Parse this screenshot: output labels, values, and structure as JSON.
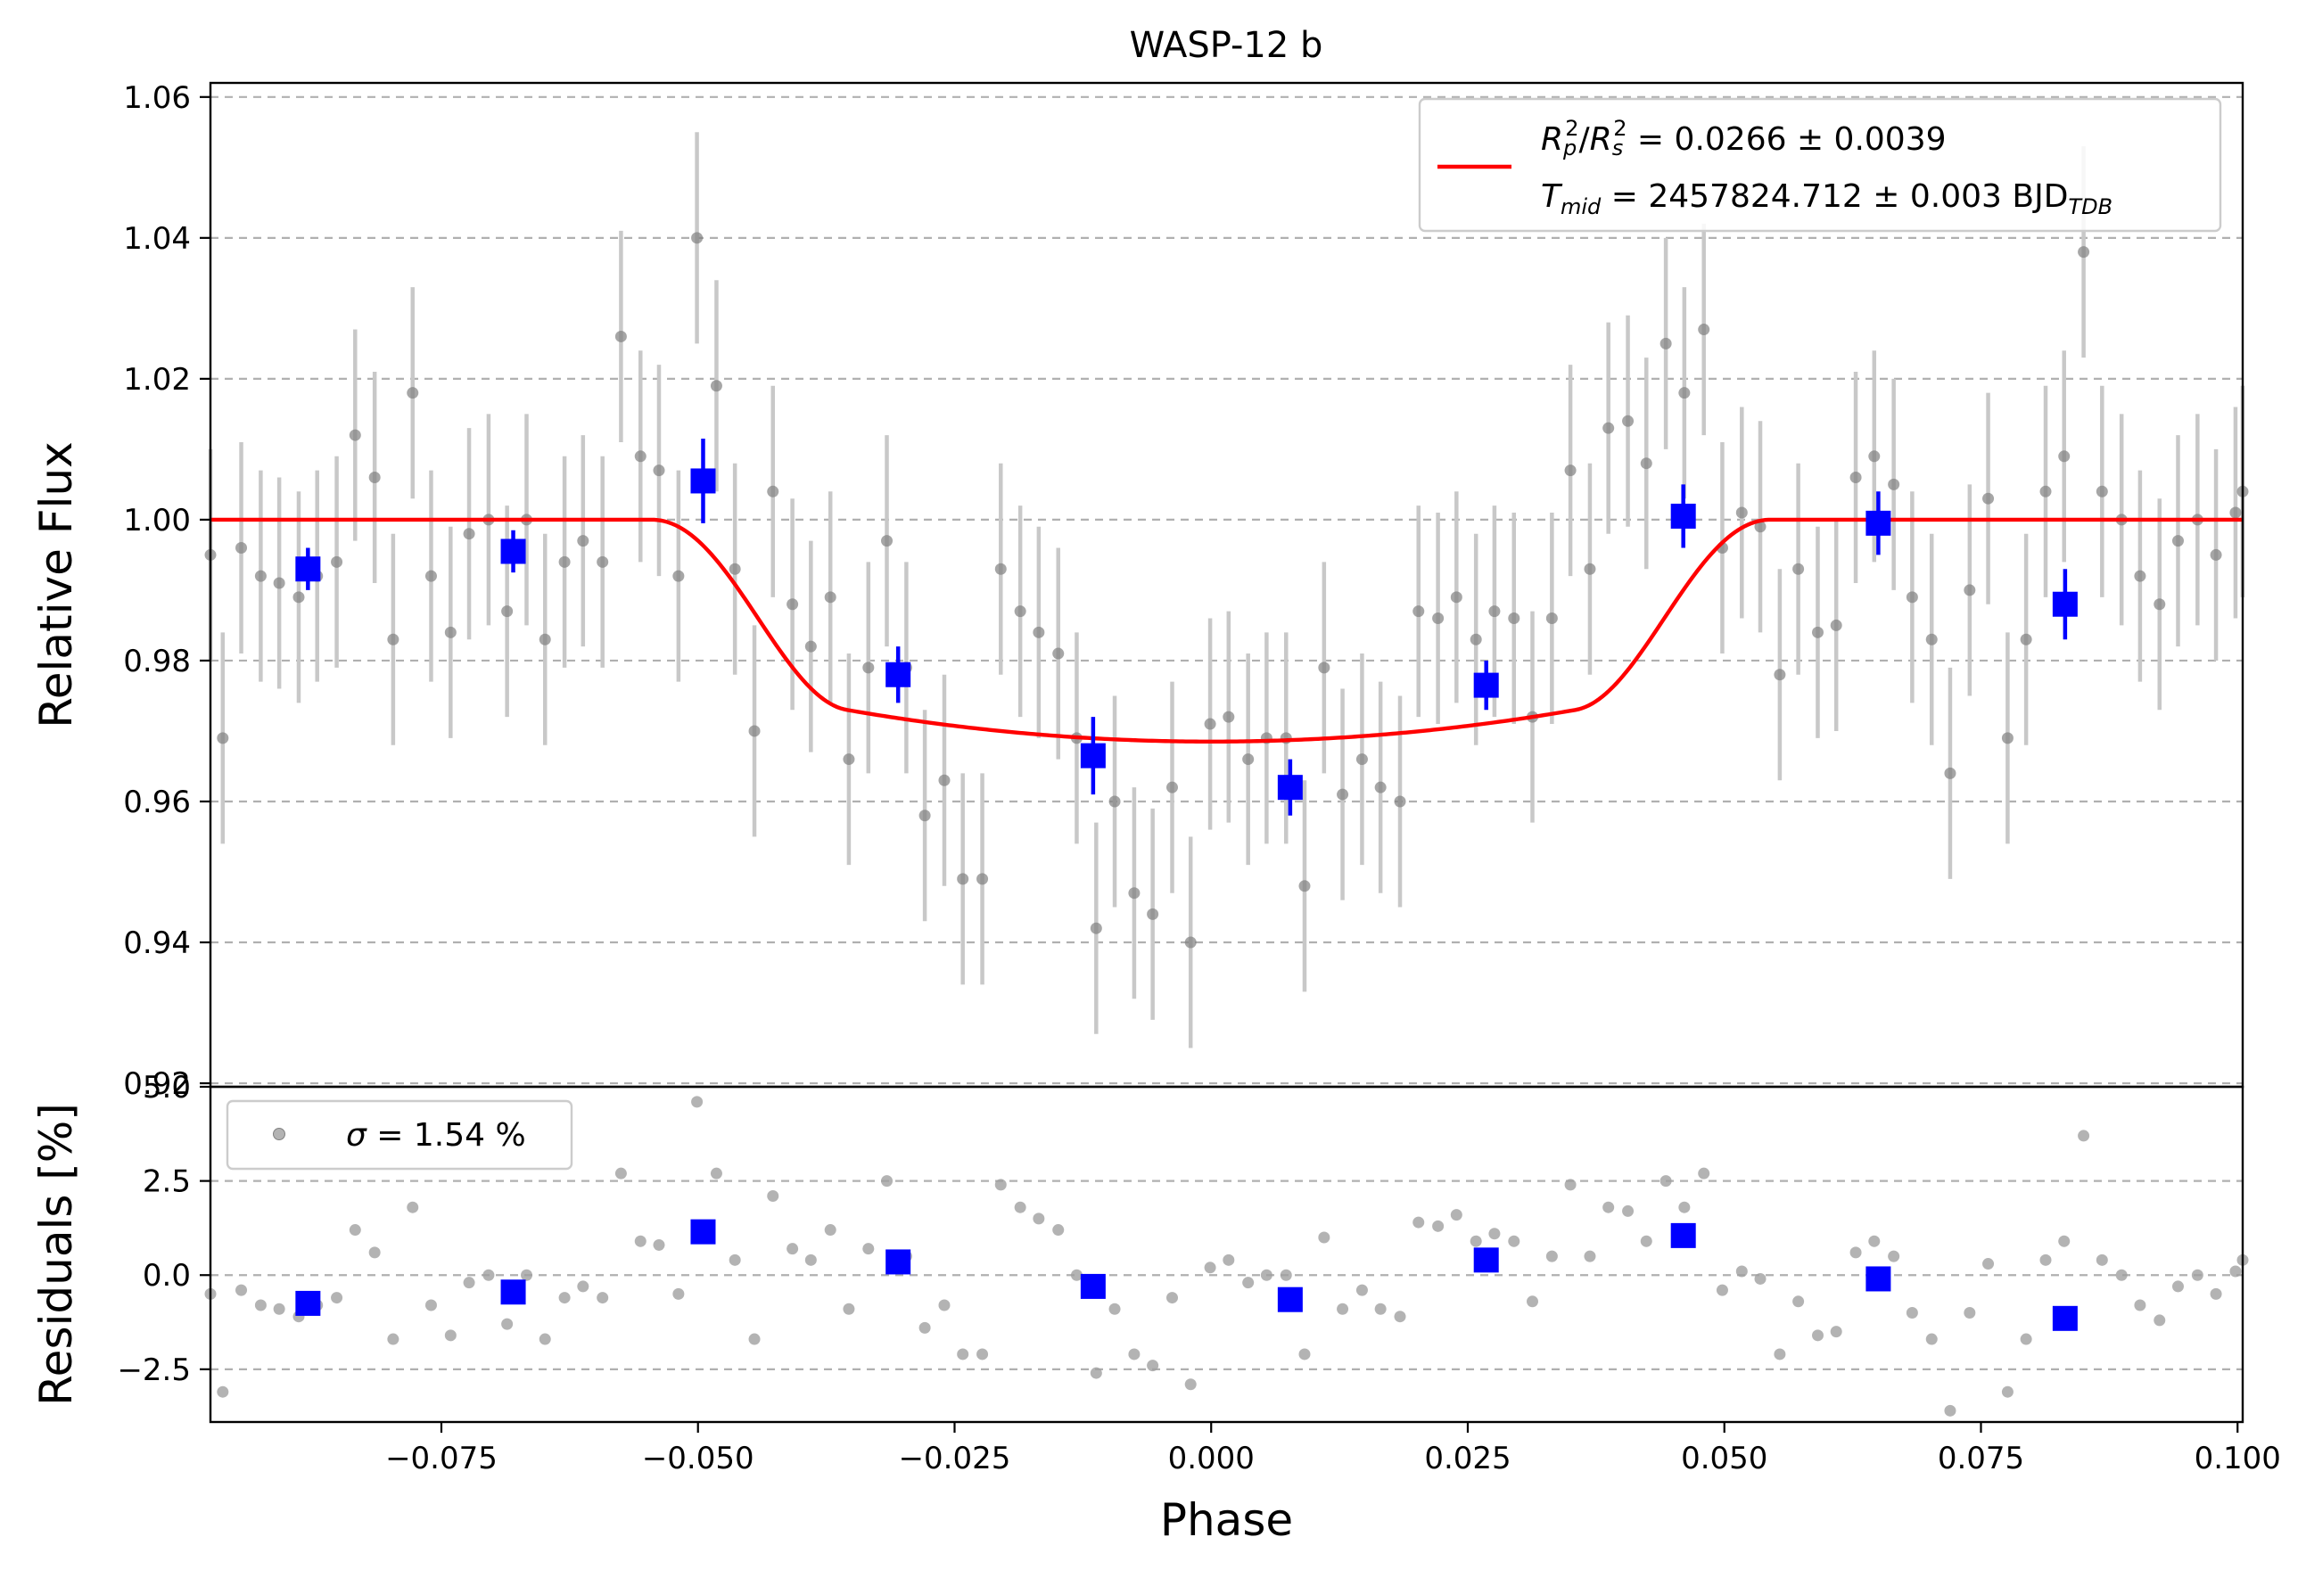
{
  "chart_data": [
    {
      "type": "scatter",
      "title": "WASP-12 b",
      "xlabel": "",
      "ylabel": "Relative Flux",
      "xlim": [
        -0.0975,
        0.1005
      ],
      "ylim": [
        0.9195,
        1.062
      ],
      "grid": "y-dashed",
      "x_ticks": [],
      "y_ticks": [
        0.92,
        0.94,
        0.96,
        0.98,
        1.0,
        1.02,
        1.04,
        1.06
      ],
      "y_tick_labels": [
        "0.92",
        "0.94",
        "0.96",
        "0.98",
        "1.00",
        "1.02",
        "1.04",
        "1.06"
      ],
      "legend": {
        "position": "upper right",
        "entries": [
          {
            "label": "R_p^2/R_s^2 = 0.0266 ± 0.0039",
            "color": "#ff0000"
          },
          {
            "label": "T_mid = 2457824.712 ± 0.003 BJD_TDB",
            "color": "#ff0000"
          }
        ]
      },
      "model": {
        "name": "transit model",
        "color": "#ff0000",
        "depth": 0.0315,
        "t1": -0.0545,
        "t2": -0.0355,
        "t3": 0.0355,
        "t4": 0.0545,
        "x_range": [
          -0.0975,
          0.1005
        ]
      },
      "series": [
        {
          "name": "data",
          "color": "#808080",
          "error_color": "#c8c8c8",
          "error": 0.015,
          "x": [
            -0.0975,
            -0.0963,
            -0.0945,
            -0.0926,
            -0.0908,
            -0.0889,
            -0.0871,
            -0.0852,
            -0.0834,
            -0.0815,
            -0.0797,
            -0.0778,
            -0.076,
            -0.0741,
            -0.0723,
            -0.0704,
            -0.0686,
            -0.0667,
            -0.0649,
            -0.063,
            -0.0612,
            -0.0593,
            -0.0575,
            -0.0556,
            -0.0538,
            -0.0519,
            -0.0501,
            -0.0482,
            -0.0464,
            -0.0445,
            -0.0427,
            -0.0408,
            -0.039,
            -0.0371,
            -0.0353,
            -0.0334,
            -0.0316,
            -0.0297,
            -0.0279,
            -0.026,
            -0.0242,
            -0.0223,
            -0.0205,
            -0.0186,
            -0.0168,
            -0.0149,
            -0.0131,
            -0.0112,
            -0.0094,
            -0.0075,
            -0.0057,
            -0.0038,
            -0.002,
            -0.0001,
            0.0017,
            0.0036,
            0.0054,
            0.0073,
            0.0091,
            0.011,
            0.0128,
            0.0147,
            0.0165,
            0.0184,
            0.0202,
            0.0221,
            0.0239,
            0.0258,
            0.0276,
            0.0295,
            0.0313,
            0.0332,
            0.035,
            0.0369,
            0.0387,
            0.0406,
            0.0424,
            0.0443,
            0.0461,
            0.048,
            0.0498,
            0.0517,
            0.0535,
            0.0554,
            0.0572,
            0.0591,
            0.0609,
            0.0628,
            0.0646,
            0.0665,
            0.0683,
            0.0702,
            0.072,
            0.0739,
            0.0757,
            0.0776,
            0.0794,
            0.0813,
            0.0831,
            0.085,
            0.0868,
            0.0887,
            0.0905,
            0.0924,
            0.0942,
            0.0961,
            0.0979,
            0.0998,
            0.1005
          ],
          "y": [
            0.995,
            0.969,
            0.996,
            0.992,
            0.991,
            0.989,
            0.992,
            0.994,
            1.012,
            1.006,
            0.983,
            1.018,
            0.992,
            0.984,
            0.998,
            1.0,
            0.987,
            1.0,
            0.983,
            0.994,
            0.997,
            0.994,
            1.026,
            1.009,
            1.007,
            0.992,
            1.04,
            1.019,
            0.993,
            0.97,
            1.004,
            0.988,
            0.982,
            0.989,
            0.966,
            0.979,
            0.997,
            0.979,
            0.958,
            0.963,
            0.949,
            0.949,
            0.993,
            0.987,
            0.984,
            0.981,
            0.969,
            0.942,
            0.96,
            0.947,
            0.944,
            0.962,
            0.94,
            0.971,
            0.972,
            0.966,
            0.969,
            0.969,
            0.948,
            0.979,
            0.961,
            0.966,
            0.962,
            0.96,
            0.987,
            0.986,
            0.989,
            0.983,
            0.987,
            0.986,
            0.972,
            0.986,
            1.007,
            0.993,
            1.013,
            1.014,
            1.008,
            1.025,
            1.018,
            1.027,
            0.996,
            1.001,
            0.999,
            0.978,
            0.993,
            0.984,
            0.985,
            1.006,
            1.009,
            1.005,
            0.989,
            0.983,
            0.964,
            0.99,
            1.003,
            0.969,
            0.983,
            1.004,
            1.009,
            1.038,
            1.004,
            1.0,
            0.992,
            0.988,
            0.997,
            1.0,
            0.995,
            1.001,
            1.004
          ]
        },
        {
          "name": "binned",
          "color": "#0000ff",
          "error": 0.003,
          "x": [
            -0.088,
            -0.068,
            -0.0495,
            -0.0305,
            -0.0115,
            0.0077,
            0.0268,
            0.046,
            0.065,
            0.0832
          ],
          "y": [
            0.993,
            0.9955,
            1.0055,
            0.978,
            0.9665,
            0.962,
            0.9765,
            1.0005,
            0.9995,
            0.988
          ],
          "yerr": [
            0.003,
            0.003,
            0.006,
            0.004,
            0.0055,
            0.004,
            0.0035,
            0.0045,
            0.0045,
            0.005
          ]
        }
      ]
    },
    {
      "type": "scatter",
      "title": "",
      "xlabel": "Phase",
      "ylabel": "Residuals [%]",
      "xlim": [
        -0.0975,
        0.1005
      ],
      "ylim": [
        -3.9,
        5.0
      ],
      "grid": "y-dashed",
      "x_ticks": [
        -0.075,
        -0.05,
        -0.025,
        0.0,
        0.025,
        0.05,
        0.075,
        0.1
      ],
      "x_tick_labels": [
        "−0.075",
        "−0.050",
        "−0.025",
        "0.000",
        "0.025",
        "0.050",
        "0.075",
        "0.100"
      ],
      "y_ticks": [
        -2.5,
        0.0,
        2.5,
        5.0
      ],
      "y_tick_labels": [
        "−2.5",
        "0.0",
        "2.5",
        "5.0"
      ],
      "legend": {
        "position": "upper left",
        "entries": [
          {
            "label": "σ = 1.54 %",
            "color": "#a0a0a0"
          }
        ]
      },
      "series": [
        {
          "name": "residuals",
          "color": "#a0a0a0",
          "x": [
            -0.0975,
            -0.0963,
            -0.0945,
            -0.0926,
            -0.0908,
            -0.0889,
            -0.0871,
            -0.0852,
            -0.0834,
            -0.0815,
            -0.0797,
            -0.0778,
            -0.076,
            -0.0741,
            -0.0723,
            -0.0704,
            -0.0686,
            -0.0667,
            -0.0649,
            -0.063,
            -0.0612,
            -0.0593,
            -0.0575,
            -0.0556,
            -0.0538,
            -0.0519,
            -0.0501,
            -0.0482,
            -0.0464,
            -0.0445,
            -0.0427,
            -0.0408,
            -0.039,
            -0.0371,
            -0.0353,
            -0.0334,
            -0.0316,
            -0.0297,
            -0.0279,
            -0.026,
            -0.0242,
            -0.0223,
            -0.0205,
            -0.0186,
            -0.0168,
            -0.0149,
            -0.0131,
            -0.0112,
            -0.0094,
            -0.0075,
            -0.0057,
            -0.0038,
            -0.002,
            -0.0001,
            0.0017,
            0.0036,
            0.0054,
            0.0073,
            0.0091,
            0.011,
            0.0128,
            0.0147,
            0.0165,
            0.0184,
            0.0202,
            0.0221,
            0.0239,
            0.0258,
            0.0276,
            0.0295,
            0.0313,
            0.0332,
            0.035,
            0.0369,
            0.0387,
            0.0406,
            0.0424,
            0.0443,
            0.0461,
            0.048,
            0.0498,
            0.0517,
            0.0535,
            0.0554,
            0.0572,
            0.0591,
            0.0609,
            0.0628,
            0.0646,
            0.0665,
            0.0683,
            0.0702,
            0.072,
            0.0739,
            0.0757,
            0.0776,
            0.0794,
            0.0813,
            0.0831,
            0.085,
            0.0868,
            0.0887,
            0.0905,
            0.0924,
            0.0942,
            0.0961,
            0.0979,
            0.0998,
            0.1005
          ],
          "y": [
            -0.5,
            -3.1,
            -0.4,
            -0.8,
            -0.9,
            -1.1,
            -0.8,
            -0.6,
            1.2,
            0.6,
            -1.7,
            1.8,
            -0.8,
            -1.6,
            -0.2,
            0.0,
            -1.3,
            0.0,
            -1.7,
            -0.6,
            -0.3,
            -0.6,
            2.7,
            0.9,
            0.8,
            -0.5,
            4.6,
            2.7,
            0.4,
            -1.7,
            2.1,
            0.7,
            0.4,
            1.2,
            -0.9,
            0.7,
            2.5,
            0.5,
            -1.4,
            -0.8,
            -2.1,
            -2.1,
            2.4,
            1.8,
            1.5,
            1.2,
            0.0,
            -2.6,
            -0.9,
            -2.1,
            -2.4,
            -0.6,
            -2.9,
            0.2,
            0.4,
            -0.2,
            0.0,
            0.0,
            -2.1,
            1.0,
            -0.9,
            -0.4,
            -0.9,
            -1.1,
            1.4,
            1.3,
            1.6,
            0.9,
            1.1,
            0.9,
            -0.7,
            0.5,
            2.4,
            0.5,
            1.8,
            1.7,
            0.9,
            2.5,
            1.8,
            2.7,
            -0.4,
            0.1,
            -0.1,
            -2.1,
            -0.7,
            -1.6,
            -1.5,
            0.6,
            0.9,
            0.5,
            -1.0,
            -1.7,
            -3.6,
            -1.0,
            0.3,
            -3.1,
            -1.7,
            0.4,
            0.9,
            3.7,
            0.4,
            0.0,
            -0.8,
            -1.2,
            -0.3,
            0.0,
            -0.5,
            0.1,
            0.4
          ]
        },
        {
          "name": "binned residuals",
          "color": "#0000ff",
          "x": [
            -0.088,
            -0.068,
            -0.0495,
            -0.0305,
            -0.0115,
            0.0077,
            0.0268,
            0.046,
            0.065,
            0.0832
          ],
          "y": [
            -0.75,
            -0.45,
            1.15,
            0.35,
            -0.3,
            -0.65,
            0.4,
            1.05,
            -0.1,
            -1.15
          ]
        }
      ]
    }
  ]
}
